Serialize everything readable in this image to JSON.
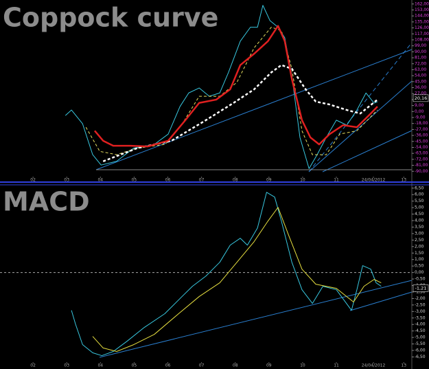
{
  "chart_data": [
    {
      "type": "line",
      "title": "Coppock curve",
      "tick_color": "#e040e0",
      "xlim": [
        1.02,
        13.24
      ],
      "ylim": [
        -98,
        168
      ],
      "xticks": [
        {
          "value": 2,
          "label": "02"
        },
        {
          "value": 3,
          "label": "03"
        },
        {
          "value": 4,
          "label": "04"
        },
        {
          "value": 5,
          "label": "05"
        },
        {
          "value": 6,
          "label": "06"
        },
        {
          "value": 7,
          "label": "07"
        },
        {
          "value": 8,
          "label": "08"
        },
        {
          "value": 9,
          "label": "09"
        },
        {
          "value": 10,
          "label": "10"
        },
        {
          "value": 11,
          "label": "11"
        },
        {
          "value": 12.1,
          "label": "24/04/2012"
        },
        {
          "value": 13,
          "label": "13"
        }
      ],
      "yticks": [
        {
          "value": 162,
          "label": "162,00"
        },
        {
          "value": 153,
          "label": "153,00"
        },
        {
          "value": 144,
          "label": "144,00"
        },
        {
          "value": 135,
          "label": "135,00"
        },
        {
          "value": 126,
          "label": "126,00"
        },
        {
          "value": 117,
          "label": "117,00"
        },
        {
          "value": 108,
          "label": "108,00"
        },
        {
          "value": 99,
          "label": "99,00"
        },
        {
          "value": 90,
          "label": "90,00"
        },
        {
          "value": 81,
          "label": "81,00"
        },
        {
          "value": 72,
          "label": "72,00"
        },
        {
          "value": 63,
          "label": "63,00"
        },
        {
          "value": 54,
          "label": "54,00"
        },
        {
          "value": 45,
          "label": "45,00"
        },
        {
          "value": 36,
          "label": "36,00"
        },
        {
          "value": 27,
          "label": "27,00"
        },
        {
          "value": 18,
          "label": "18,00"
        },
        {
          "value": 9,
          "label": "9,00"
        },
        {
          "value": 0,
          "label": "0,00"
        },
        {
          "value": -9,
          "label": "-9,00"
        },
        {
          "value": -18,
          "label": "-18,00"
        },
        {
          "value": -27,
          "label": "-27,00"
        },
        {
          "value": -36,
          "label": "-36,00"
        },
        {
          "value": -45,
          "label": "-45,00"
        },
        {
          "value": -54,
          "label": "-54,00"
        },
        {
          "value": -63,
          "label": "-63,00"
        },
        {
          "value": -72,
          "label": "-72,00"
        },
        {
          "value": -81,
          "label": "-81,00"
        },
        {
          "value": -90,
          "label": "-90,00"
        }
      ],
      "current_value": {
        "value": 20.16,
        "label": "20,16"
      },
      "zero_line": false,
      "series": [
        {
          "color": "#38c8e0",
          "width": 1,
          "dash": false,
          "x": [
            2.96,
            3.14,
            3.47,
            3.77,
            4.02,
            4.48,
            4.99,
            5.6,
            6.01,
            6.36,
            6.62,
            6.93,
            7.23,
            7.54,
            7.8,
            8.15,
            8.45,
            8.66,
            8.82,
            9.03,
            9.27,
            9.47,
            9.68,
            9.92,
            10.19,
            10.43,
            10.7,
            11.0,
            11.31,
            11.61,
            11.88,
            12.12,
            12.22
          ],
          "values": [
            -6,
            2.3,
            -18.4,
            -65,
            -80.6,
            -75,
            -55,
            -49.5,
            -34,
            7.5,
            28,
            35.5,
            23,
            28,
            59,
            106,
            127,
            127,
            160,
            137,
            127,
            111,
            54,
            -39,
            -86,
            -65,
            -39,
            -13,
            -20.5,
            2.3,
            28,
            12.7,
            14.8
          ]
        },
        {
          "color": "#e8e060",
          "width": 1,
          "dash": true,
          "x": [
            3.57,
            3.98,
            4.48,
            5.1,
            5.92,
            6.43,
            6.93,
            7.54,
            8.05,
            8.56,
            9.07,
            9.37,
            9.68,
            9.98,
            10.29,
            10.7,
            11.1,
            11.61,
            12.22
          ],
          "values": [
            -23.6,
            -60,
            -65,
            -55,
            -49.5,
            -18.4,
            23,
            23,
            44,
            96,
            127,
            122,
            64.5,
            -29,
            -65,
            -65,
            -34,
            -29,
            2.3
          ]
        },
        {
          "color": "#ffffff",
          "width": 2.5,
          "dash": true,
          "x": [
            4.08,
            5.1,
            6.11,
            7.13,
            7.95,
            8.56,
            9.07,
            9.37,
            9.68,
            10.09,
            10.39,
            10.8,
            11.31,
            11.71,
            12.22
          ],
          "values": [
            -75,
            -55,
            -44,
            -13,
            13,
            33.4,
            59,
            70,
            64.5,
            33.4,
            15,
            10.6,
            2.3,
            -3,
            18
          ]
        },
        {
          "color": "#e02020",
          "width": 2.5,
          "dash": false,
          "x": [
            3.83,
            4.08,
            4.38,
            4.89,
            5.4,
            6.01,
            6.52,
            6.93,
            7.44,
            7.85,
            8.15,
            8.56,
            8.97,
            9.27,
            9.47,
            9.68,
            9.98,
            10.23,
            10.49,
            10.8,
            11.2,
            11.61,
            12.02,
            12.22
          ],
          "values": [
            -29,
            -44,
            -51.6,
            -51.6,
            -52.6,
            -44,
            -13,
            13,
            18,
            33.4,
            70,
            87,
            106,
            129,
            106,
            49,
            -13,
            -39,
            -49.5,
            -34,
            -20.5,
            -23.6,
            -3,
            7.5
          ]
        }
      ]
    },
    {
      "type": "line",
      "title": "MACD",
      "tick_color": "#d8d8d8",
      "xlim": [
        1.02,
        13.24
      ],
      "ylim": [
        -6.9,
        6.7
      ],
      "xticks": [
        {
          "value": 2,
          "label": "02"
        },
        {
          "value": 3,
          "label": "03"
        },
        {
          "value": 4,
          "label": "04"
        },
        {
          "value": 5,
          "label": "05"
        },
        {
          "value": 6,
          "label": "06"
        },
        {
          "value": 7,
          "label": "07"
        },
        {
          "value": 8,
          "label": "08"
        },
        {
          "value": 9,
          "label": "09"
        },
        {
          "value": 10,
          "label": "10"
        },
        {
          "value": 11,
          "label": "11"
        },
        {
          "value": 12.1,
          "label": "24/04/2012"
        },
        {
          "value": 13,
          "label": "13"
        }
      ],
      "yticks": [
        {
          "value": 6.5,
          "label": "6,50"
        },
        {
          "value": 6,
          "label": "6,00"
        },
        {
          "value": 5.5,
          "label": "5,50"
        },
        {
          "value": 5,
          "label": "5,00"
        },
        {
          "value": 4.5,
          "label": "4,50"
        },
        {
          "value": 4,
          "label": "4,00"
        },
        {
          "value": 3.5,
          "label": "3,50"
        },
        {
          "value": 3,
          "label": "3,00"
        },
        {
          "value": 2.5,
          "label": "2,50"
        },
        {
          "value": 2,
          "label": "2,00"
        },
        {
          "value": 1.5,
          "label": "1,50"
        },
        {
          "value": 1,
          "label": "1,00"
        },
        {
          "value": 0.5,
          "label": "0,50"
        },
        {
          "value": 0,
          "label": "0,00"
        },
        {
          "value": -0.5,
          "label": "-0,50"
        },
        {
          "value": -1,
          "label": "-1,00"
        },
        {
          "value": -1.5,
          "label": "-1,50"
        },
        {
          "value": -2,
          "label": "-2,00"
        },
        {
          "value": -2.5,
          "label": "-2,50"
        },
        {
          "value": -3,
          "label": "-3,00"
        },
        {
          "value": -3.5,
          "label": "-3,50"
        },
        {
          "value": -4,
          "label": "-4,00"
        },
        {
          "value": -4.5,
          "label": "-4,50"
        },
        {
          "value": -5,
          "label": "-5,00"
        },
        {
          "value": -5.5,
          "label": "-5,50"
        },
        {
          "value": -6,
          "label": "-6,00"
        },
        {
          "value": -6.5,
          "label": "-6,50"
        }
      ],
      "current_value": {
        "value": -1.21,
        "label": "-1,21"
      },
      "zero_line": true,
      "series": [
        {
          "color": "#38c8e0",
          "width": 1,
          "dash": false,
          "x": [
            3.14,
            3.26,
            3.47,
            3.77,
            4.04,
            4.38,
            4.79,
            5.3,
            5.91,
            6.42,
            6.73,
            7.13,
            7.54,
            7.85,
            8.15,
            8.36,
            8.66,
            8.93,
            9.17,
            9.37,
            9.68,
            9.98,
            10.29,
            10.6,
            11.0,
            11.45,
            11.61,
            11.78,
            12.02,
            12.18,
            12.33
          ],
          "values": [
            -2.91,
            -3.97,
            -5.55,
            -6.18,
            -6.4,
            -6.08,
            -5.29,
            -4.23,
            -3.17,
            -1.85,
            -1.06,
            -0.27,
            0.79,
            2.11,
            2.64,
            2.11,
            3.43,
            6.18,
            5.81,
            3.96,
            0.79,
            -1.32,
            -2.38,
            -1.06,
            -1.32,
            -2.91,
            -1.32,
            0.53,
            0.26,
            -0.79,
            -1.06
          ]
        },
        {
          "color": "#e8e040",
          "width": 1,
          "dash": false,
          "x": [
            3.77,
            4.08,
            4.48,
            4.99,
            5.6,
            6.32,
            6.93,
            7.54,
            8.05,
            8.56,
            8.97,
            9.27,
            9.58,
            9.98,
            10.39,
            11.0,
            11.51,
            11.82,
            12.12,
            12.33
          ],
          "values": [
            -4.92,
            -5.81,
            -6.08,
            -5.55,
            -4.76,
            -3.17,
            -1.85,
            -0.79,
            0.79,
            2.38,
            3.96,
            5.02,
            2.9,
            0.26,
            -0.9,
            -1.22,
            -2.27,
            -1.06,
            -0.53,
            -0.79
          ]
        }
      ]
    }
  ]
}
